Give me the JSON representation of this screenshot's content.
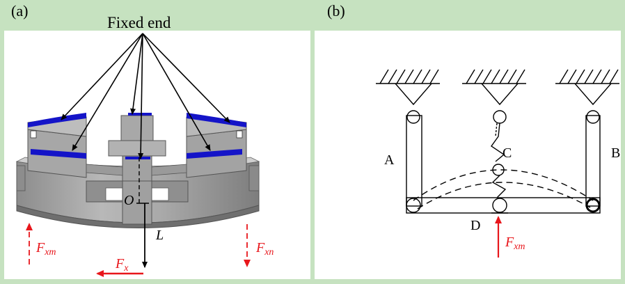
{
  "panel_a": {
    "label": "(a)",
    "fixed_end": "Fixed end",
    "labels": {
      "origin": "O",
      "length": "L",
      "fx": "F",
      "fx_sub": "x",
      "fxm": "F",
      "fxm_sub": "xm",
      "fxn": "F",
      "fxn_sub": "xn"
    }
  },
  "panel_b": {
    "label": "(b)",
    "labels": {
      "a": "A",
      "b": "B",
      "c": "C",
      "d": "D",
      "fxm": "F",
      "fxm_sub": "xm"
    }
  },
  "colors": {
    "background": "#c6e2c0",
    "force": "#e8161b",
    "metal": "#9b9b9b",
    "fixed": "#1010c8"
  }
}
